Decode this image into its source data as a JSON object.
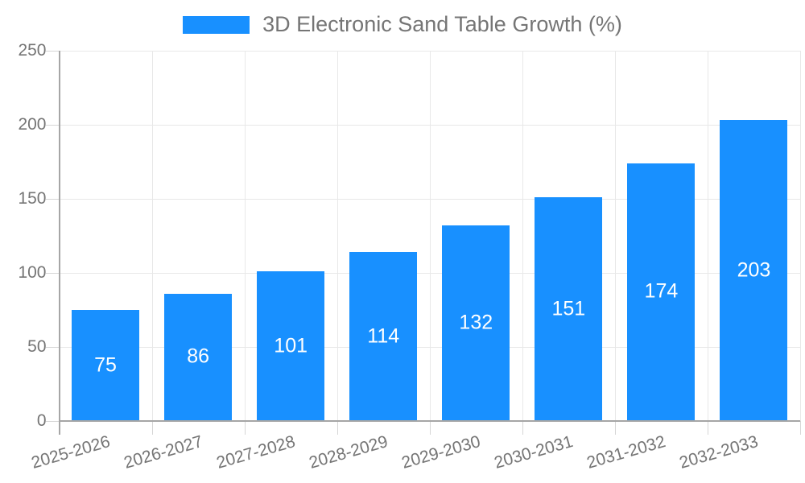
{
  "chart_data": {
    "type": "bar",
    "title": "3D Electronic Sand Table Growth (%)",
    "legend": {
      "label": "3D Electronic Sand Table Growth (%)",
      "position": "top-center"
    },
    "categories": [
      "2025-2026",
      "2026-2027",
      "2027-2028",
      "2028-2029",
      "2029-2030",
      "2030-2031",
      "2031-2032",
      "2032-2033"
    ],
    "values": [
      75,
      86,
      101,
      114,
      132,
      151,
      174,
      203
    ],
    "xlabel": "",
    "ylabel": "",
    "ylim": [
      0,
      250
    ],
    "ytick_step": 50,
    "yticks": [
      0,
      50,
      100,
      150,
      200,
      250
    ],
    "grid": true,
    "colors": {
      "bar": "#1890ff",
      "axis_text": "#757575",
      "value_label": "#ffffff",
      "gridline": "#e8e8e8",
      "tick": "#d6d6d6",
      "axis_line": "#a6a6a6"
    }
  }
}
